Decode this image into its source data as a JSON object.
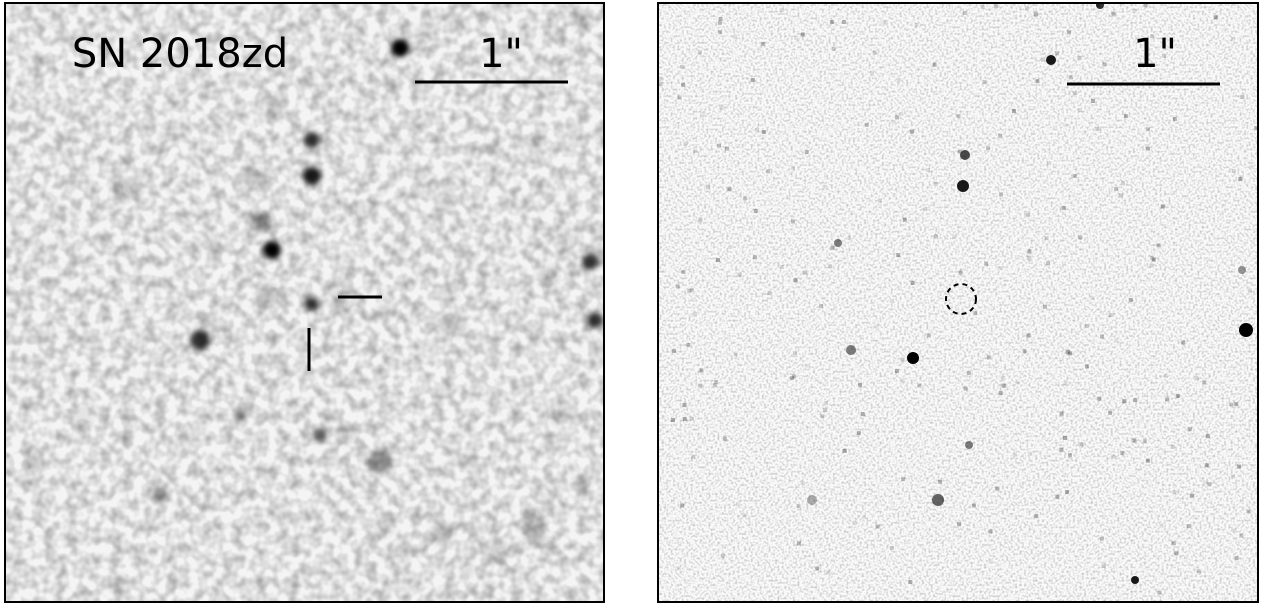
{
  "panels": [
    {
      "label": "SN 2018zd",
      "scale_label": "1\""
    },
    {
      "scale_label": "1\""
    }
  ]
}
